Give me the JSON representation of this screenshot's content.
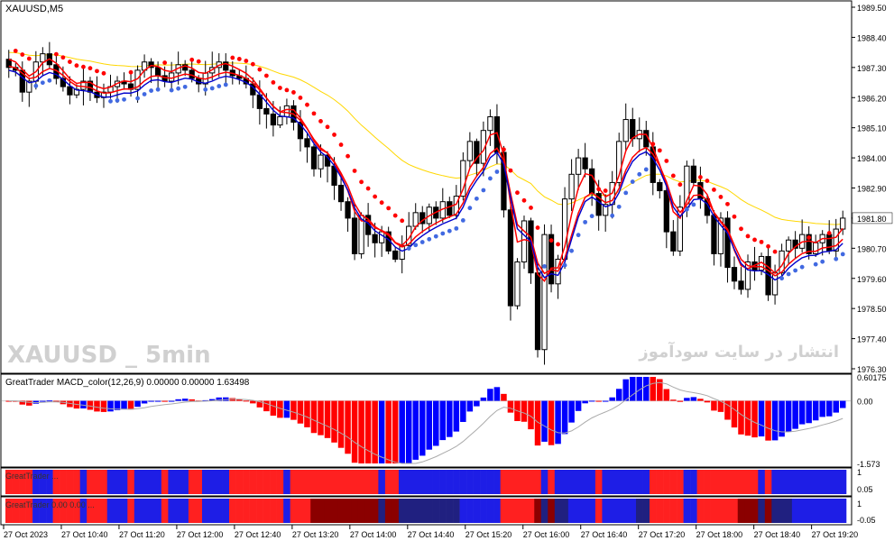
{
  "symbol_label": "XAUUSD,M5",
  "watermark_left": "XAUUSD _ 5min",
  "watermark_right": "انتشار در سایت سودآموز",
  "macd_label": "GreatTrader MACD_color(12,26,9) 0.00000 0.00000 1.63498",
  "strip1_label": "GreatTrader ...",
  "strip2_label": "GreatTrader 0.00 0.00 ...",
  "colors": {
    "bg": "#ffffff",
    "axis": "#000000",
    "candle": "#000000",
    "red_line": "#ff0000",
    "blue_line": "#0000cc",
    "red_dot": "#ff0000",
    "blue_dot": "#4169e1",
    "ma_yellow": "#ffd700",
    "hist_red": "#ff0000",
    "hist_blue": "#0000ff",
    "signal_line": "#aaaaaa",
    "strip_red": "#ff2020",
    "strip_blue": "#1e1ee6",
    "strip_darkred": "#8b0000",
    "strip_darkblue": "#202080"
  },
  "price_axis": {
    "ticks": [
      "1989.50",
      "1988.40",
      "1987.30",
      "1986.20",
      "1985.10",
      "1984.00",
      "1982.90",
      "1981.80",
      "1980.70",
      "1979.60",
      "1978.50",
      "1977.40",
      "1976.30"
    ],
    "current_price": "1981.80"
  },
  "macd_axis": {
    "ticks": [
      "0.60175",
      "0.00",
      "-1.573"
    ]
  },
  "strip1_axis": {
    "ticks": [
      "1",
      "0.05"
    ]
  },
  "strip2_axis": {
    "ticks": [
      "1",
      "-0.05"
    ]
  },
  "time_axis": {
    "labels": [
      "27 Oct 2023",
      "27 Oct 10:40",
      "27 Oct 11:20",
      "27 Oct 12:00",
      "27 Oct 12:40",
      "27 Oct 13:20",
      "27 Oct 14:00",
      "27 Oct 14:40",
      "27 Oct 15:20",
      "27 Oct 16:00",
      "27 Oct 16:40",
      "27 Oct 17:20",
      "27 Oct 18:00",
      "27 Oct 18:40",
      "27 Oct 19:20"
    ]
  },
  "chart_data": {
    "type": "candlestick",
    "price_range": [
      1976.3,
      1989.5
    ],
    "candles_close": [
      1987.3,
      1987.2,
      1986.4,
      1986.8,
      1987.5,
      1987.8,
      1987.4,
      1986.9,
      1986.6,
      1986.3,
      1986.5,
      1986.8,
      1986.4,
      1986.2,
      1986.4,
      1986.6,
      1986.8,
      1986.7,
      1986.5,
      1987.2,
      1987.5,
      1987.3,
      1987.0,
      1986.8,
      1987.1,
      1987.4,
      1987.2,
      1986.9,
      1986.7,
      1987.1,
      1987.3,
      1987.5,
      1987.2,
      1987.0,
      1986.9,
      1986.7,
      1986.3,
      1985.8,
      1985.6,
      1985.2,
      1985.5,
      1985.9,
      1985.3,
      1984.7,
      1984.4,
      1983.6,
      1984.1,
      1983.7,
      1983.0,
      1982.4,
      1981.8,
      1980.5,
      1981.9,
      1981.2,
      1980.9,
      1981.3,
      1980.6,
      1980.3,
      1980.8,
      1981.5,
      1982.0,
      1981.6,
      1982.2,
      1981.8,
      1982.4,
      1981.9,
      1982.6,
      1983.9,
      1984.6,
      1983.8,
      1985.0,
      1985.5,
      1984.2,
      1982.1,
      1978.6,
      1980.2,
      1981.7,
      1979.8,
      1977.0,
      1981.2,
      1979.4,
      1980.3,
      1982.5,
      1983.4,
      1984.0,
      1983.6,
      1982.7,
      1981.9,
      1982.3,
      1983.1,
      1984.6,
      1985.4,
      1984.7,
      1985.0,
      1984.4,
      1983.1,
      1982.8,
      1981.3,
      1980.6,
      1982.2,
      1983.7,
      1983.1,
      1982.5,
      1981.9,
      1980.5,
      1981.8,
      1980.0,
      1979.5,
      1979.2,
      1980.2,
      1979.9,
      1980.4,
      1979.0,
      1979.8,
      1980.6,
      1981.0,
      1980.7,
      1981.2,
      1980.5,
      1980.9,
      1981.2,
      1980.6,
      1981.4,
      1981.8
    ]
  }
}
